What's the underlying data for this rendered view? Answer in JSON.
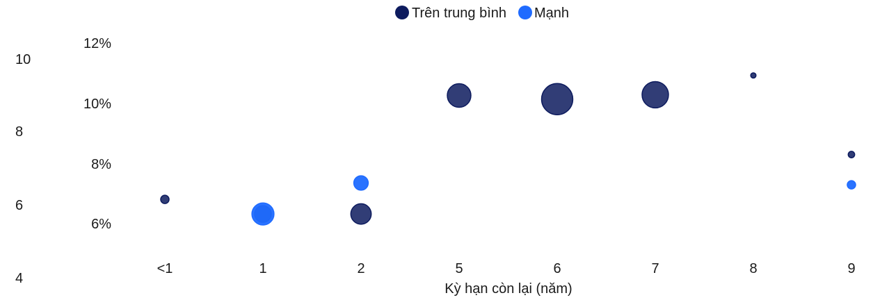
{
  "chart_data": {
    "type": "scatter",
    "subtype": "bubble",
    "title": "",
    "xlabel": "Kỳ hạn còn lại (năm)",
    "ylabel": "",
    "categories": [
      "<1",
      "1",
      "2",
      "5",
      "6",
      "7",
      "8",
      "9"
    ],
    "y_left_ticks": [
      "10",
      "8",
      "6",
      "4"
    ],
    "y_left_range": [
      4,
      10
    ],
    "y_right_ticks": [
      "12%",
      "10%",
      "8%",
      "6%"
    ],
    "y_right_range_percent": [
      4.1,
      12.6
    ],
    "grid": false,
    "legend_position": "top-center",
    "series": [
      {
        "name": "Trên trung bình",
        "color": "#0d1b5e",
        "points": [
          {
            "x": "<1",
            "y": 6.15,
            "size": 1
          },
          {
            "x": "1",
            "y": 5.75,
            "size": 4
          },
          {
            "x": "2",
            "y": 5.75,
            "size": 6
          },
          {
            "x": "5",
            "y": 9.0,
            "size": 8
          },
          {
            "x": "6",
            "y": 8.9,
            "size": 14
          },
          {
            "x": "7",
            "y": 9.02,
            "size": 10
          },
          {
            "x": "8",
            "y": 9.55,
            "size": 0.4
          },
          {
            "x": "9",
            "y": 7.38,
            "size": 0.6
          }
        ]
      },
      {
        "name": "Mạnh",
        "color": "#1f6bff",
        "points": [
          {
            "x": "1",
            "y": 5.75,
            "size": 7
          },
          {
            "x": "2",
            "y": 6.6,
            "size": 3
          },
          {
            "x": "9",
            "y": 6.55,
            "size": 1
          }
        ]
      }
    ]
  }
}
